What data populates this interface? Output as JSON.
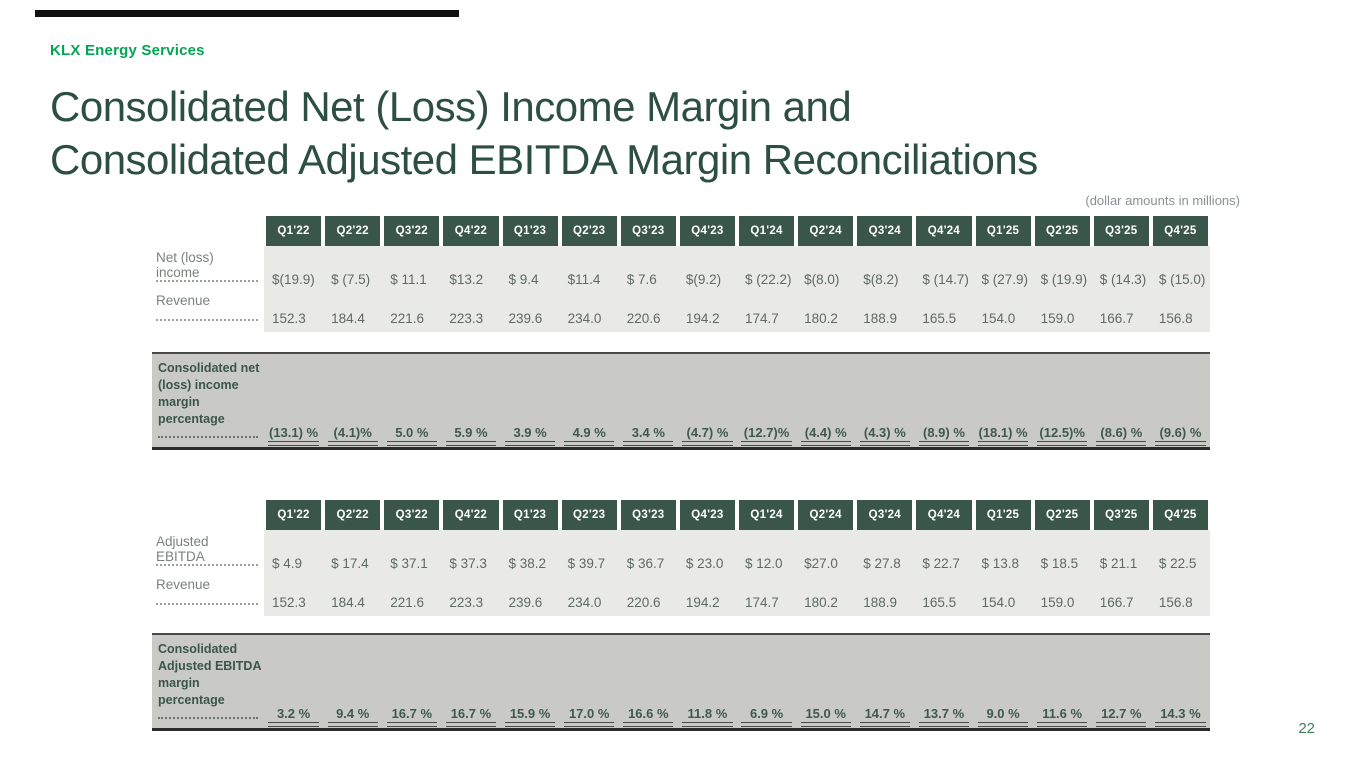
{
  "brand": {
    "name": "KLX Energy Services"
  },
  "title": {
    "line1": "Consolidated Net (Loss) Income Margin and",
    "line2": "Consolidated Adjusted EBITDA Margin Reconciliations"
  },
  "note": "(dollar amounts in millions)",
  "page_number": "22",
  "colors": {
    "accent_green": "#00A651",
    "header_cell_green": "#3A564A",
    "title_green": "#2D4E43",
    "light_row_gray": "#E9E9E7",
    "margin_band_gray": "#C9C9C6"
  },
  "quarters": [
    "Q1'22",
    "Q2'22",
    "Q3'22",
    "Q4'22",
    "Q1'23",
    "Q2'23",
    "Q3'23",
    "Q4'23",
    "Q1'24",
    "Q2'24",
    "Q3'24",
    "Q4'24",
    "Q1'25",
    "Q2'25",
    "Q3'25",
    "Q4'25"
  ],
  "table1": {
    "rows": [
      {
        "label": "Net (loss) income",
        "values": [
          "$(19.9)",
          "$ (7.5)",
          "$ 11.1",
          "$13.2",
          "$ 9.4",
          "$11.4",
          "$ 7.6",
          "$(9.2)",
          "$ (22.2)",
          "$(8.0)",
          "$(8.2)",
          "$ (14.7)",
          "$ (27.9)",
          "$ (19.9)",
          "$ (14.3)",
          "$ (15.0)"
        ]
      },
      {
        "label": "Revenue",
        "values": [
          "152.3",
          "184.4",
          "221.6",
          "223.3",
          "239.6",
          "234.0",
          "220.6",
          "194.2",
          "174.7",
          "180.2",
          "188.9",
          "165.5",
          "154.0",
          "159.0",
          "166.7",
          "156.8"
        ]
      }
    ],
    "margin": {
      "label": "Consolidated net (loss) income margin percentage",
      "values": [
        "(13.1) %",
        "(4.1)%",
        "5.0 %",
        "5.9 %",
        "3.9 %",
        "4.9 %",
        "3.4 %",
        "(4.7) %",
        "(12.7)%",
        "(4.4) %",
        "(4.3) %",
        "(8.9) %",
        "(18.1) %",
        "(12.5)%",
        "(8.6) %",
        "(9.6) %"
      ]
    }
  },
  "table2": {
    "rows": [
      {
        "label": "Adjusted EBITDA",
        "values": [
          "$ 4.9",
          "$ 17.4",
          "$ 37.1",
          "$ 37.3",
          "$ 38.2",
          "$ 39.7",
          "$ 36.7",
          "$ 23.0",
          "$ 12.0",
          "$27.0",
          "$ 27.8",
          "$ 22.7",
          "$ 13.8",
          "$ 18.5",
          "$ 21.1",
          "$ 22.5"
        ]
      },
      {
        "label": "Revenue",
        "values": [
          "152.3",
          "184.4",
          "221.6",
          "223.3",
          "239.6",
          "234.0",
          "220.6",
          "194.2",
          "174.7",
          "180.2",
          "188.9",
          "165.5",
          "154.0",
          "159.0",
          "166.7",
          "156.8"
        ]
      }
    ],
    "margin": {
      "label": "Consolidated Adjusted EBITDA margin percentage",
      "values": [
        "3.2 %",
        "9.4 %",
        "16.7 %",
        "16.7 %",
        "15.9 %",
        "17.0 %",
        "16.6 %",
        "11.8 %",
        "6.9 %",
        "15.0 %",
        "14.7 %",
        "13.7 %",
        "9.0 %",
        "11.6 %",
        "12.7 %",
        "14.3 %"
      ]
    }
  }
}
